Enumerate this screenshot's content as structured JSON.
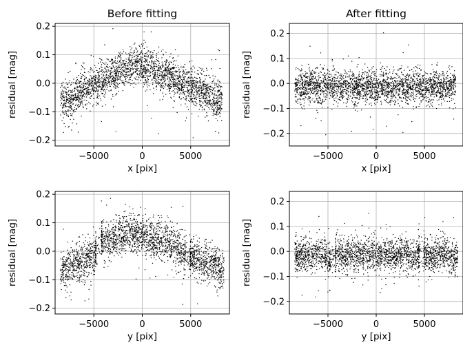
{
  "chart_data": [
    {
      "type": "scatter",
      "title": "Before fitting",
      "xlabel": "x [pix]",
      "ylabel": "residual [mag]",
      "xlim": [
        -9000,
        9000
      ],
      "ylim": [
        -0.22,
        0.21
      ],
      "xticks": [
        {
          "v": -5000,
          "label": "−5000"
        },
        {
          "v": 0,
          "label": "0"
        },
        {
          "v": 5000,
          "label": "5000"
        }
      ],
      "yticks": [
        {
          "v": -0.2,
          "label": "−0.2"
        },
        {
          "v": -0.1,
          "label": "−0.1"
        },
        {
          "v": 0.0,
          "label": "0.0"
        },
        {
          "v": 0.1,
          "label": "0.1"
        },
        {
          "v": 0.2,
          "label": "0.2"
        }
      ],
      "grid": true,
      "point_color": "#000000",
      "x": [
        -8200,
        -7600,
        -7000,
        -6400,
        -5800,
        -5200,
        -4600,
        -4000,
        -3400,
        -2800,
        -2200,
        -1600,
        -1000,
        -400,
        200,
        800,
        1400,
        2000,
        2600,
        3200,
        3800,
        4400,
        5000,
        5600,
        6200,
        6800,
        7400,
        8000
      ],
      "y": [
        -0.06,
        -0.07,
        -0.05,
        -0.03,
        -0.02,
        -0.01,
        0.0,
        0.01,
        0.02,
        0.03,
        0.04,
        0.05,
        0.06,
        0.06,
        0.06,
        0.05,
        0.04,
        0.03,
        0.03,
        0.02,
        0.01,
        0.0,
        -0.01,
        -0.02,
        -0.03,
        -0.04,
        -0.05,
        -0.06
      ]
    },
    {
      "type": "scatter",
      "title": "After fitting",
      "xlabel": "x [pix]",
      "ylabel": "residual [mag]",
      "xlim": [
        -9000,
        9000
      ],
      "ylim": [
        -0.25,
        0.24
      ],
      "xticks": [
        {
          "v": -5000,
          "label": "−5000"
        },
        {
          "v": 0,
          "label": "0"
        },
        {
          "v": 5000,
          "label": "5000"
        }
      ],
      "yticks": [
        {
          "v": -0.2,
          "label": "−0.2"
        },
        {
          "v": -0.1,
          "label": "−0.1"
        },
        {
          "v": 0.0,
          "label": "0.0"
        },
        {
          "v": 0.1,
          "label": "0.1"
        },
        {
          "v": 0.2,
          "label": "0.2"
        }
      ],
      "grid": true,
      "point_color": "#000000",
      "x": [
        -8200,
        -7600,
        -7000,
        -6400,
        -5800,
        -5200,
        -4600,
        -4000,
        -3400,
        -2800,
        -2200,
        -1600,
        -1000,
        -400,
        200,
        800,
        1400,
        2000,
        2600,
        3200,
        3800,
        4400,
        5000,
        5600,
        6200,
        6800,
        7400,
        8000
      ],
      "y": [
        -0.01,
        -0.02,
        -0.01,
        -0.01,
        -0.02,
        -0.01,
        -0.01,
        -0.02,
        -0.01,
        -0.01,
        -0.02,
        -0.01,
        -0.01,
        -0.02,
        -0.01,
        -0.01,
        -0.02,
        -0.01,
        -0.01,
        -0.02,
        -0.01,
        -0.01,
        -0.02,
        -0.01,
        -0.01,
        -0.02,
        -0.01,
        -0.01
      ]
    },
    {
      "type": "scatter",
      "xlabel": "y [pix]",
      "ylabel": "residual [mag]",
      "xlim": [
        -9000,
        9000
      ],
      "ylim": [
        -0.22,
        0.21
      ],
      "xticks": [
        {
          "v": -5000,
          "label": "−5000"
        },
        {
          "v": 0,
          "label": "0"
        },
        {
          "v": 5000,
          "label": "5000"
        }
      ],
      "yticks": [
        {
          "v": -0.2,
          "label": "−0.2"
        },
        {
          "v": -0.1,
          "label": "−0.1"
        },
        {
          "v": 0.0,
          "label": "0.0"
        },
        {
          "v": 0.1,
          "label": "0.1"
        },
        {
          "v": 0.2,
          "label": "0.2"
        }
      ],
      "grid": true,
      "point_color": "#000000",
      "x": [
        -8200,
        -7600,
        -7000,
        -6400,
        -5800,
        -5200,
        -4700,
        -4300,
        -3800,
        -3200,
        -2600,
        -2000,
        -1400,
        -800,
        -200,
        400,
        1000,
        1600,
        2200,
        2800,
        3400,
        4000,
        4600,
        5200,
        5800,
        6400,
        7000,
        7600,
        8200
      ],
      "y": [
        -0.07,
        -0.06,
        -0.05,
        -0.04,
        -0.03,
        -0.02,
        -0.01,
        0.04,
        0.04,
        0.04,
        0.05,
        0.06,
        0.06,
        0.06,
        0.06,
        0.05,
        0.05,
        0.04,
        0.04,
        0.03,
        0.02,
        0.0,
        -0.01,
        -0.02,
        -0.03,
        -0.04,
        -0.04,
        -0.05,
        -0.06
      ]
    },
    {
      "type": "scatter",
      "xlabel": "y [pix]",
      "ylabel": "residual [mag]",
      "xlim": [
        -9000,
        9000
      ],
      "ylim": [
        -0.25,
        0.24
      ],
      "xticks": [
        {
          "v": -5000,
          "label": "−5000"
        },
        {
          "v": 0,
          "label": "0"
        },
        {
          "v": 5000,
          "label": "5000"
        }
      ],
      "yticks": [
        {
          "v": -0.2,
          "label": "−0.2"
        },
        {
          "v": -0.1,
          "label": "−0.1"
        },
        {
          "v": 0.0,
          "label": "0.0"
        },
        {
          "v": 0.1,
          "label": "0.1"
        },
        {
          "v": 0.2,
          "label": "0.2"
        }
      ],
      "grid": true,
      "point_color": "#000000",
      "x": [
        -8200,
        -7600,
        -7000,
        -6400,
        -5800,
        -5200,
        -4700,
        -4300,
        -3800,
        -3200,
        -2600,
        -2000,
        -1400,
        -800,
        -200,
        400,
        1000,
        1600,
        2200,
        2800,
        3400,
        4000,
        4600,
        5200,
        5800,
        6400,
        7000,
        7600,
        8200
      ],
      "y": [
        -0.01,
        -0.01,
        -0.02,
        -0.01,
        -0.01,
        -0.02,
        -0.04,
        -0.01,
        -0.01,
        -0.02,
        -0.01,
        -0.01,
        -0.02,
        -0.01,
        -0.01,
        -0.02,
        -0.01,
        -0.01,
        -0.02,
        -0.01,
        -0.01,
        -0.02,
        -0.01,
        -0.01,
        -0.02,
        -0.01,
        -0.01,
        -0.02,
        -0.03
      ]
    }
  ]
}
